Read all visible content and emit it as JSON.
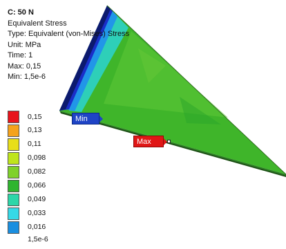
{
  "result": {
    "title": "C: 50 N",
    "name": "Equivalent Stress",
    "type": "Type: Equivalent (von-Mises) Stress",
    "unit": "Unit: MPa",
    "time": "Time: 1",
    "max": "Max: 0,15",
    "min": "Min: 1,5e-6"
  },
  "legend": {
    "ticks": [
      "0,15",
      "0,13",
      "0,11",
      "0,098",
      "0,082",
      "0,066",
      "0,049",
      "0,033",
      "0,016",
      "1,5e-6"
    ],
    "bands": [
      "#e8141c",
      "#f5a21b",
      "#e8de1a",
      "#bfe51c",
      "#7fd12a",
      "#2fb52f",
      "#2cd6a8",
      "#35d9e6",
      "#1a8fe0",
      "#1a2fc9"
    ]
  },
  "probes": {
    "min_label": "Min",
    "max_label": "Max"
  }
}
